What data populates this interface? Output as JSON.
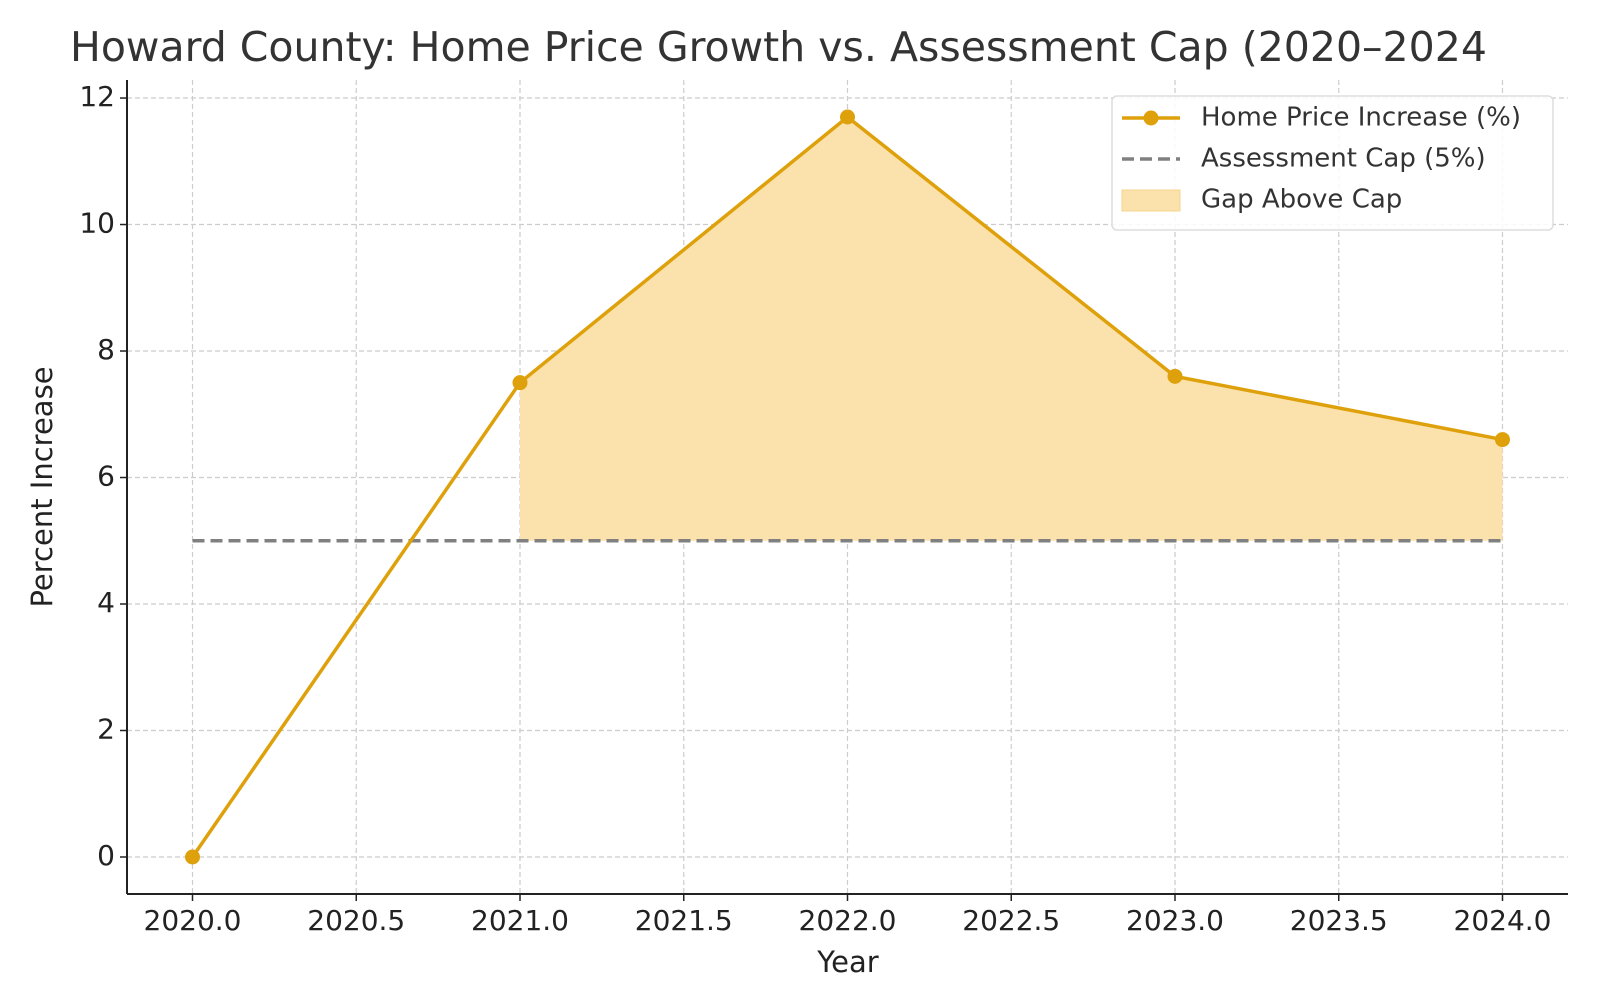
{
  "chart_data": {
    "type": "line",
    "title": "Howard County: Home Price Growth vs. Assessment Cap (2020–2024",
    "x_label": "Year",
    "y_label": "Percent Increase",
    "x": [
      2020,
      2021,
      2022,
      2023,
      2024
    ],
    "series": [
      {
        "name": "Home Price Increase (%)",
        "color": "#dea10b",
        "values": [
          0,
          7.5,
          11.7,
          7.6,
          6.6
        ],
        "marker": true,
        "dashed": false
      },
      {
        "name": "Assessment Cap (5%)",
        "color": "#808080",
        "values": [
          5,
          5,
          5,
          5,
          5
        ],
        "marker": false,
        "dashed": true
      }
    ],
    "fill": {
      "name": "Gap Above Cap",
      "color": "#fbe1ab"
    },
    "xlim": [
      2019.8,
      2024.2
    ],
    "xticks": [
      {
        "value": 2020,
        "label": "2020.0"
      },
      {
        "value": 2020.5,
        "label": "2020.5"
      },
      {
        "value": 2021,
        "label": "2021.0"
      },
      {
        "value": 2021.5,
        "label": "2021.5"
      },
      {
        "value": 2022,
        "label": "2022.0"
      },
      {
        "value": 2022.5,
        "label": "2022.5"
      },
      {
        "value": 2023,
        "label": "2023.0"
      },
      {
        "value": 2023.5,
        "label": "2023.5"
      },
      {
        "value": 2024,
        "label": "2024.0"
      }
    ],
    "ylim": [
      -0.585,
      12.285
    ],
    "yticks": [
      0,
      2,
      4,
      6,
      8,
      10,
      12
    ],
    "grid": true,
    "legend": "upper right"
  }
}
